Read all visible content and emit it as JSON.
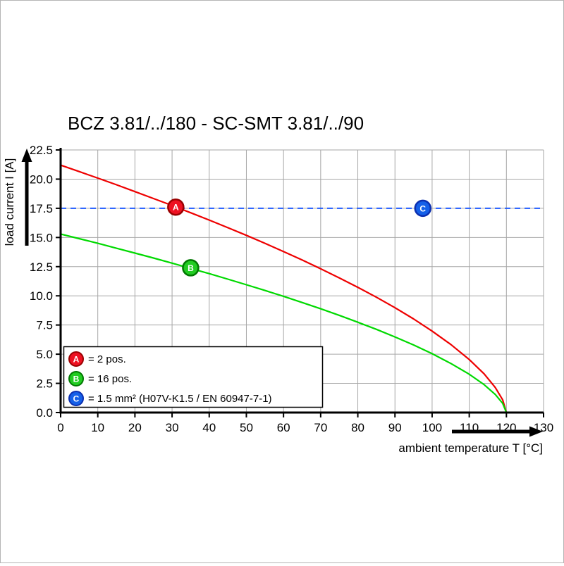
{
  "chart_data": {
    "type": "line",
    "title": "BCZ 3.81/../180 - SC-SMT 3.81/../90",
    "xlabel": "ambient temperature T [°C]",
    "ylabel": "load current I [A]",
    "xlim": [
      0,
      130
    ],
    "ylim": [
      0,
      22.5
    ],
    "x_ticks": [
      "0",
      "10",
      "20",
      "30",
      "40",
      "50",
      "60",
      "70",
      "80",
      "90",
      "100",
      "110",
      "120",
      "130"
    ],
    "y_ticks": [
      "0.0",
      "2.5",
      "5.0",
      "7.5",
      "10.0",
      "12.5",
      "15.0",
      "17.5",
      "20.0",
      "22.5"
    ],
    "grid": true,
    "legend_position": "bottom-left",
    "colors": {
      "grid": "#a6a6a6",
      "axis": "#000000"
    },
    "series": [
      {
        "name": "A",
        "label": "= 2 pos.",
        "color": "#ee0000",
        "marker_fill": "#ee1122",
        "marker_stroke": "#990000",
        "marker": {
          "x": 31,
          "y": 17.6
        },
        "points": [
          [
            0,
            21.2
          ],
          [
            5,
            20.65
          ],
          [
            10,
            20.09
          ],
          [
            15,
            19.52
          ],
          [
            20,
            18.93
          ],
          [
            25,
            18.34
          ],
          [
            30,
            17.74
          ],
          [
            35,
            17.12
          ],
          [
            40,
            16.49
          ],
          [
            45,
            15.84
          ],
          [
            50,
            15.18
          ],
          [
            55,
            14.5
          ],
          [
            60,
            13.79
          ],
          [
            65,
            13.07
          ],
          [
            70,
            12.32
          ],
          [
            75,
            11.54
          ],
          [
            80,
            10.73
          ],
          [
            85,
            9.88
          ],
          [
            90,
            8.98
          ],
          [
            95,
            8.02
          ],
          [
            100,
            6.98
          ],
          [
            105,
            5.84
          ],
          [
            110,
            4.54
          ],
          [
            114,
            3.31
          ],
          [
            117,
            2.15
          ],
          [
            119,
            1.09
          ],
          [
            120,
            0
          ]
        ]
      },
      {
        "name": "B",
        "label": "= 16 pos.",
        "color": "#00d900",
        "marker_fill": "#22cc22",
        "marker_stroke": "#007700",
        "marker": {
          "x": 35,
          "y": 12.4
        },
        "points": [
          [
            0,
            15.3
          ],
          [
            5,
            14.9
          ],
          [
            10,
            14.5
          ],
          [
            15,
            14.08
          ],
          [
            20,
            13.66
          ],
          [
            25,
            13.24
          ],
          [
            30,
            12.8
          ],
          [
            35,
            12.35
          ],
          [
            40,
            11.9
          ],
          [
            45,
            11.43
          ],
          [
            50,
            10.95
          ],
          [
            55,
            10.46
          ],
          [
            60,
            9.96
          ],
          [
            65,
            9.43
          ],
          [
            70,
            8.89
          ],
          [
            75,
            8.33
          ],
          [
            80,
            7.74
          ],
          [
            85,
            7.13
          ],
          [
            90,
            6.48
          ],
          [
            95,
            5.79
          ],
          [
            100,
            5.04
          ],
          [
            105,
            4.21
          ],
          [
            110,
            3.28
          ],
          [
            114,
            2.39
          ],
          [
            117,
            1.55
          ],
          [
            119,
            0.79
          ],
          [
            120,
            0
          ]
        ]
      },
      {
        "name": "C",
        "label": "= 1.5 mm² (H07V-K1.5 / EN 60947-7-1)",
        "color": "#1f5bff",
        "style": "dashed-horizontal",
        "y": 17.5,
        "marker_fill": "#1560e8",
        "marker_stroke": "#0b2fb0",
        "marker": {
          "x": 97.5,
          "y": 17.5
        }
      }
    ]
  }
}
